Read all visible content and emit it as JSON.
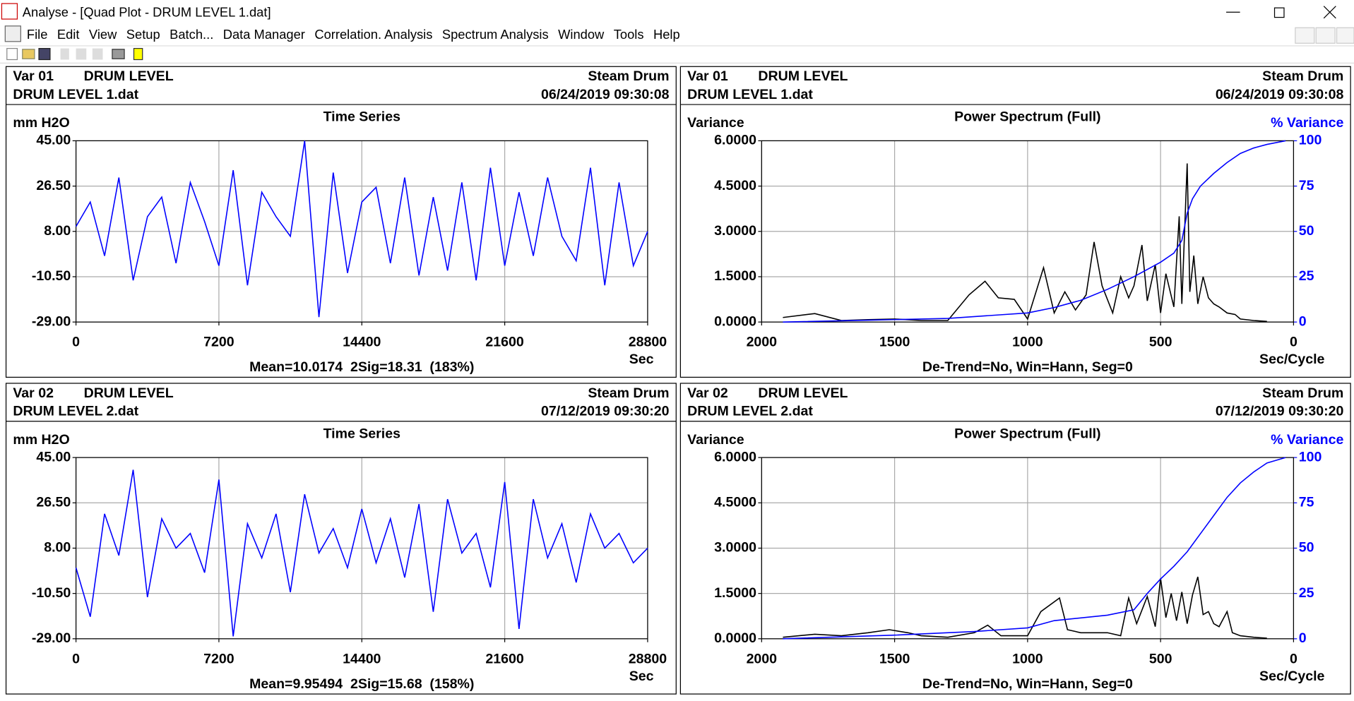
{
  "window": {
    "title": "Analyse - [Quad Plot - DRUM LEVEL 1.dat]",
    "menu": [
      "File",
      "Edit",
      "View",
      "Setup",
      "Batch...",
      "Data Manager",
      "Correlation. Analysis",
      "Spectrum Analysis",
      "Window",
      "Tools",
      "Help"
    ]
  },
  "chart_data": [
    {
      "type": "line",
      "var": "Var 01",
      "variable": "DRUM LEVEL",
      "location": "Steam Drum",
      "file": "DRUM LEVEL 1.dat",
      "date": "06/24/2019 09:30:08",
      "title": "Time Series",
      "ylabel": "mm H2O",
      "xlabel": "Sec",
      "footer": "Mean=10.0174  2Sig=18.31  (183%)",
      "x": [
        0,
        720,
        1440,
        2160,
        2880,
        3600,
        4320,
        5040,
        5760,
        6480,
        7200,
        7920,
        8640,
        9360,
        10080,
        10800,
        11520,
        12240,
        12960,
        13680,
        14400,
        15120,
        15840,
        16560,
        17280,
        18000,
        18720,
        19440,
        20160,
        20880,
        21600,
        22320,
        23040,
        23760,
        24480,
        25200,
        25920,
        26640,
        27360,
        28080,
        28800
      ],
      "series": [
        {
          "color": "#0000ff",
          "values": [
            10,
            20,
            -2,
            30,
            -12,
            14,
            22,
            -5,
            28,
            12,
            -6,
            33,
            -14,
            24,
            14,
            6,
            45,
            -27,
            32,
            -9,
            20,
            26,
            -5,
            30,
            -10,
            22,
            -8,
            28,
            -12,
            34,
            -6,
            24,
            -2,
            30,
            6,
            -4,
            34,
            -14,
            28,
            -6,
            8
          ]
        }
      ],
      "xlim": [
        0,
        28800
      ],
      "xticks": [
        0,
        7200,
        14400,
        21600,
        28800
      ],
      "ylim": [
        -29,
        45
      ],
      "yticks": [
        {
          "value": -29,
          "label": "-29.00"
        },
        {
          "value": -10.5,
          "label": "-10.50"
        },
        {
          "value": 8,
          "label": "8.00"
        },
        {
          "value": 26.5,
          "label": "26.50"
        },
        {
          "value": 45,
          "label": "45.00"
        }
      ],
      "grid": true
    },
    {
      "type": "line",
      "var": "Var 01",
      "variable": "DRUM LEVEL",
      "location": "Steam Drum",
      "file": "DRUM LEVEL 1.dat",
      "date": "06/24/2019 09:30:08",
      "title": "Power Spectrum (Full)",
      "ylabel": "Variance",
      "y2label": "% Variance",
      "xlabel": "Sec/Cycle",
      "footer": "De-Trend=No, Win=Hann, Seg=0",
      "series": [
        {
          "color": "#000000",
          "x": [
            1920,
            1800,
            1700,
            1600,
            1500,
            1400,
            1300,
            1220,
            1160,
            1110,
            1050,
            1000,
            940,
            900,
            860,
            820,
            780,
            750,
            720,
            680,
            650,
            620,
            600,
            570,
            550,
            520,
            500,
            480,
            450,
            430,
            420,
            400,
            390,
            375,
            360,
            340,
            320,
            300,
            280,
            250,
            220,
            200,
            150,
            100
          ],
          "values": [
            0.15,
            0.28,
            0.05,
            0.08,
            0.1,
            0.05,
            0.05,
            0.9,
            1.35,
            0.8,
            0.75,
            0.1,
            1.8,
            0.3,
            1.0,
            0.4,
            0.9,
            2.65,
            1.2,
            0.3,
            1.5,
            0.8,
            1.2,
            2.55,
            0.7,
            1.9,
            0.3,
            1.6,
            0.5,
            3.5,
            0.6,
            5.25,
            1.0,
            2.2,
            0.6,
            1.5,
            0.8,
            0.6,
            0.5,
            0.3,
            0.25,
            0.1,
            0.05,
            0.02
          ]
        },
        {
          "color": "#0000ff",
          "axis": "y2",
          "x": [
            1920,
            1600,
            1300,
            1100,
            1000,
            900,
            800,
            700,
            600,
            500,
            450,
            420,
            400,
            380,
            350,
            300,
            250,
            200,
            150,
            100,
            30
          ],
          "values": [
            0,
            1,
            2,
            4,
            5,
            8,
            12,
            18,
            25,
            33,
            38,
            45,
            60,
            68,
            75,
            82,
            88,
            93,
            96,
            98,
            100
          ]
        }
      ],
      "xlim": [
        2000,
        0
      ],
      "xticks": [
        2000,
        1500,
        1000,
        500,
        0
      ],
      "ylim": [
        0,
        6
      ],
      "yticks": [
        {
          "value": 0,
          "label": "0.0000"
        },
        {
          "value": 1.5,
          "label": "1.5000"
        },
        {
          "value": 3,
          "label": "3.0000"
        },
        {
          "value": 4.5,
          "label": "4.5000"
        },
        {
          "value": 6,
          "label": "6.0000"
        }
      ],
      "y2lim": [
        0,
        100
      ],
      "y2ticks": [
        0,
        25,
        50,
        75,
        100
      ],
      "y2color": "#0000ff",
      "grid": true
    },
    {
      "type": "line",
      "var": "Var 02",
      "variable": "DRUM LEVEL",
      "location": "Steam Drum",
      "file": "DRUM LEVEL 2.dat",
      "date": "07/12/2019 09:30:20",
      "title": "Time Series",
      "ylabel": "mm H2O",
      "xlabel": "Sec",
      "footer": "Mean=9.95494  2Sig=15.68  (158%)",
      "x": [
        0,
        720,
        1440,
        2160,
        2880,
        3600,
        4320,
        5040,
        5760,
        6480,
        7200,
        7920,
        8640,
        9360,
        10080,
        10800,
        11520,
        12240,
        12960,
        13680,
        14400,
        15120,
        15840,
        16560,
        17280,
        18000,
        18720,
        19440,
        20160,
        20880,
        21600,
        22320,
        23040,
        23760,
        24480,
        25200,
        25920,
        26640,
        27360,
        28080,
        28800
      ],
      "series": [
        {
          "color": "#0000ff",
          "values": [
            0,
            -20,
            22,
            5,
            40,
            -12,
            20,
            8,
            14,
            -2,
            36,
            -28,
            18,
            4,
            22,
            -10,
            30,
            6,
            16,
            0,
            24,
            2,
            20,
            -4,
            26,
            -18,
            28,
            6,
            14,
            -8,
            35,
            -25,
            28,
            4,
            18,
            -6,
            22,
            8,
            14,
            2,
            8
          ]
        }
      ],
      "xlim": [
        0,
        28800
      ],
      "xticks": [
        0,
        7200,
        14400,
        21600,
        28800
      ],
      "ylim": [
        -29,
        45
      ],
      "yticks": [
        {
          "value": -29,
          "label": "-29.00"
        },
        {
          "value": -10.5,
          "label": "-10.50"
        },
        {
          "value": 8,
          "label": "8.00"
        },
        {
          "value": 26.5,
          "label": "26.50"
        },
        {
          "value": 45,
          "label": "45.00"
        }
      ],
      "grid": true
    },
    {
      "type": "line",
      "var": "Var 02",
      "variable": "DRUM LEVEL",
      "location": "Steam Drum",
      "file": "DRUM LEVEL 2.dat",
      "date": "07/12/2019 09:30:20",
      "title": "Power Spectrum (Full)",
      "ylabel": "Variance",
      "y2label": "% Variance",
      "xlabel": "Sec/Cycle",
      "footer": "De-Trend=No, Win=Hann, Seg=0",
      "series": [
        {
          "color": "#000000",
          "x": [
            1920,
            1800,
            1700,
            1600,
            1520,
            1450,
            1400,
            1300,
            1200,
            1150,
            1100,
            1000,
            950,
            880,
            850,
            800,
            700,
            650,
            620,
            590,
            550,
            520,
            500,
            480,
            460,
            440,
            420,
            400,
            380,
            360,
            340,
            320,
            300,
            280,
            250,
            230,
            200,
            150,
            100
          ],
          "values": [
            0.05,
            0.15,
            0.1,
            0.2,
            0.3,
            0.2,
            0.1,
            0.05,
            0.2,
            0.45,
            0.1,
            0.1,
            0.9,
            1.35,
            0.3,
            0.2,
            0.2,
            0.1,
            1.35,
            0.5,
            1.4,
            0.4,
            2.0,
            0.7,
            1.5,
            0.6,
            1.55,
            0.5,
            1.45,
            2.05,
            0.8,
            0.9,
            0.5,
            0.4,
            0.9,
            0.2,
            0.1,
            0.05,
            0.02
          ]
        },
        {
          "color": "#0000ff",
          "axis": "y2",
          "x": [
            1920,
            1500,
            1200,
            1000,
            900,
            700,
            600,
            550,
            500,
            450,
            400,
            350,
            300,
            250,
            200,
            150,
            100,
            30
          ],
          "values": [
            0,
            2,
            4,
            6,
            10,
            13,
            16,
            25,
            33,
            40,
            48,
            58,
            68,
            78,
            86,
            92,
            97,
            100
          ]
        }
      ],
      "xlim": [
        2000,
        0
      ],
      "xticks": [
        2000,
        1500,
        1000,
        500,
        0
      ],
      "ylim": [
        0,
        6
      ],
      "yticks": [
        {
          "value": 0,
          "label": "0.0000"
        },
        {
          "value": 1.5,
          "label": "1.5000"
        },
        {
          "value": 3,
          "label": "3.0000"
        },
        {
          "value": 4.5,
          "label": "4.5000"
        },
        {
          "value": 6,
          "label": "6.0000"
        }
      ],
      "y2lim": [
        0,
        100
      ],
      "y2ticks": [
        0,
        25,
        50,
        75,
        100
      ],
      "y2color": "#0000ff",
      "grid": true
    }
  ]
}
